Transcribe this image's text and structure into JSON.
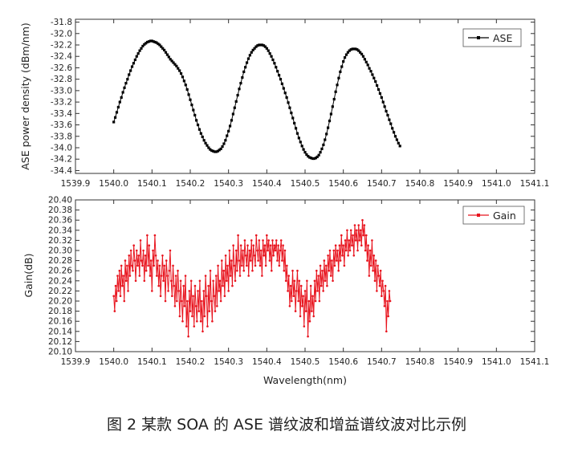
{
  "caption": "图 2  某款 SOA 的 ASE 谱纹波和增益谱纹波对比示例",
  "chart_data": [
    {
      "type": "line",
      "title": "",
      "xlabel": "",
      "ylabel": "ASE power density (dBm/nm)",
      "xlim": [
        1539.9,
        1541.1
      ],
      "ylim": [
        -34.45,
        -31.75
      ],
      "x_ticks": [
        "1539.9",
        "1540.0",
        "1540.1",
        "1540.2",
        "1540.3",
        "1540.4",
        "1540.5",
        "1540.6",
        "1540.7",
        "1540.8",
        "1540.9",
        "1541.0",
        "1541.1"
      ],
      "y_ticks": [
        "-31.8",
        "-32.0",
        "-32.2",
        "-32.4",
        "-32.6",
        "-32.8",
        "-33.0",
        "-33.2",
        "-33.4",
        "-33.6",
        "-33.8",
        "-34.0",
        "-34.2",
        "-34.4"
      ],
      "legend_position": "top-right",
      "series_color": "#000000",
      "marker": "square",
      "series": [
        {
          "name": "ASE",
          "x_start": 1540.0,
          "x_step": 0.004,
          "values": [
            -33.55,
            -33.47,
            -33.38,
            -33.29,
            -33.2,
            -33.12,
            -33.03,
            -32.95,
            -32.87,
            -32.8,
            -32.72,
            -32.65,
            -32.58,
            -32.52,
            -32.46,
            -32.4,
            -32.35,
            -32.3,
            -32.26,
            -32.22,
            -32.19,
            -32.17,
            -32.15,
            -32.14,
            -32.13,
            -32.13,
            -32.14,
            -32.15,
            -32.16,
            -32.18,
            -32.2,
            -32.23,
            -32.26,
            -32.29,
            -32.33,
            -32.37,
            -32.41,
            -32.45,
            -32.48,
            -32.51,
            -32.54,
            -32.57,
            -32.61,
            -32.65,
            -32.7,
            -32.76,
            -32.83,
            -32.9,
            -32.98,
            -33.07,
            -33.16,
            -33.25,
            -33.34,
            -33.43,
            -33.52,
            -33.6,
            -33.68,
            -33.75,
            -33.81,
            -33.87,
            -33.92,
            -33.96,
            -34.0,
            -34.03,
            -34.05,
            -34.06,
            -34.07,
            -34.07,
            -34.06,
            -34.04,
            -34.02,
            -33.98,
            -33.93,
            -33.87,
            -33.79,
            -33.71,
            -33.62,
            -33.52,
            -33.41,
            -33.3,
            -33.19,
            -33.08,
            -32.97,
            -32.87,
            -32.77,
            -32.67,
            -32.59,
            -32.51,
            -32.44,
            -32.38,
            -32.33,
            -32.29,
            -32.26,
            -32.23,
            -32.21,
            -32.2,
            -32.2,
            -32.2,
            -32.21,
            -32.23,
            -32.26,
            -32.3,
            -32.35,
            -32.4,
            -32.46,
            -32.52,
            -32.59,
            -32.66,
            -32.73,
            -32.8,
            -32.88,
            -32.96,
            -33.04,
            -33.12,
            -33.21,
            -33.3,
            -33.39,
            -33.48,
            -33.57,
            -33.66,
            -33.75,
            -33.83,
            -33.9,
            -33.97,
            -34.03,
            -34.08,
            -34.12,
            -34.15,
            -34.17,
            -34.18,
            -34.19,
            -34.19,
            -34.18,
            -34.16,
            -34.13,
            -34.08,
            -34.02,
            -33.95,
            -33.86,
            -33.76,
            -33.65,
            -33.53,
            -33.41,
            -33.28,
            -33.15,
            -33.02,
            -32.9,
            -32.78,
            -32.67,
            -32.58,
            -32.49,
            -32.42,
            -32.37,
            -32.33,
            -32.3,
            -32.28,
            -32.27,
            -32.27,
            -32.27,
            -32.28,
            -32.3,
            -32.33,
            -32.36,
            -32.4,
            -32.45,
            -32.5,
            -32.55,
            -32.61,
            -32.66,
            -32.72,
            -32.78,
            -32.84,
            -32.91,
            -32.98,
            -33.05,
            -33.12,
            -33.2,
            -33.28,
            -33.36,
            -33.43,
            -33.51,
            -33.58,
            -33.66,
            -33.73,
            -33.8,
            -33.86,
            -33.92,
            -33.97
          ]
        }
      ]
    },
    {
      "type": "line",
      "title": "",
      "xlabel": "Wavelength(nm)",
      "ylabel": "Gain(dB)",
      "xlim": [
        1539.9,
        1541.1
      ],
      "ylim": [
        20.1,
        20.4
      ],
      "x_ticks": [
        "1539.9",
        "1540.0",
        "1540.1",
        "1540.2",
        "1540.3",
        "1540.4",
        "1540.5",
        "1540.6",
        "1540.7",
        "1540.8",
        "1540.9",
        "1541.0",
        "1541.1"
      ],
      "y_ticks": [
        "20.40",
        "20.38",
        "20.36",
        "20.34",
        "20.32",
        "20.30",
        "20.28",
        "20.26",
        "20.24",
        "20.22",
        "20.20",
        "20.18",
        "20.16",
        "20.14",
        "20.12",
        "20.10"
      ],
      "legend_position": "top-right",
      "series_color": "#e8141e",
      "marker": "dot",
      "series": [
        {
          "name": "Gain",
          "x_start": 1540.0,
          "x_step": 0.0025,
          "values": [
            20.21,
            20.18,
            20.23,
            20.2,
            20.25,
            20.22,
            20.26,
            20.21,
            20.27,
            20.23,
            20.25,
            20.2,
            20.28,
            20.24,
            20.27,
            20.22,
            20.29,
            20.25,
            20.3,
            20.27,
            20.26,
            20.31,
            20.28,
            20.24,
            20.3,
            20.27,
            20.29,
            20.25,
            20.32,
            20.28,
            20.27,
            20.3,
            20.24,
            20.29,
            20.26,
            20.33,
            20.27,
            20.31,
            20.25,
            20.28,
            20.22,
            20.3,
            20.27,
            20.33,
            20.29,
            20.25,
            20.28,
            20.23,
            20.27,
            20.21,
            20.25,
            20.29,
            20.24,
            20.27,
            20.2,
            20.28,
            20.25,
            20.22,
            20.26,
            20.3,
            20.24,
            20.21,
            20.27,
            20.23,
            20.19,
            20.25,
            20.2,
            20.26,
            20.22,
            20.17,
            20.24,
            20.2,
            20.16,
            20.23,
            20.19,
            20.25,
            20.15,
            20.2,
            20.13,
            20.22,
            20.18,
            20.24,
            20.17,
            20.21,
            20.15,
            20.23,
            20.19,
            20.16,
            20.22,
            20.18,
            20.24,
            20.16,
            20.2,
            20.14,
            20.22,
            20.17,
            20.25,
            20.21,
            20.15,
            20.23,
            20.18,
            20.26,
            20.2,
            20.16,
            20.24,
            20.21,
            20.18,
            20.25,
            20.19,
            20.27,
            20.22,
            20.24,
            20.2,
            20.28,
            20.23,
            20.26,
            20.21,
            20.29,
            20.24,
            20.27,
            20.22,
            20.3,
            20.25,
            20.28,
            20.23,
            20.31,
            20.27,
            20.24,
            20.3,
            20.26,
            20.33,
            20.28,
            20.25,
            20.31,
            20.27,
            20.3,
            20.26,
            20.32,
            20.29,
            20.27,
            20.31,
            20.25,
            20.3,
            20.28,
            20.32,
            20.26,
            20.31,
            20.29,
            20.27,
            20.33,
            20.3,
            20.28,
            20.32,
            20.27,
            20.3,
            20.25,
            20.32,
            20.29,
            20.31,
            20.27,
            20.33,
            20.3,
            20.32,
            20.28,
            20.31,
            20.26,
            20.32,
            20.29,
            20.31,
            20.3,
            20.32,
            20.28,
            20.31,
            20.27,
            20.3,
            20.32,
            20.28,
            20.31,
            20.26,
            20.3,
            20.24,
            20.27,
            20.22,
            20.25,
            20.19,
            20.23,
            20.2,
            20.26,
            20.21,
            20.24,
            20.18,
            20.22,
            20.26,
            20.2,
            20.24,
            20.17,
            20.23,
            20.19,
            20.21,
            20.15,
            20.22,
            20.18,
            20.24,
            20.13,
            20.2,
            20.16,
            20.23,
            20.18,
            20.21,
            20.17,
            20.24,
            20.2,
            20.26,
            20.22,
            20.25,
            20.2,
            20.27,
            20.23,
            20.26,
            20.22,
            20.28,
            20.24,
            20.27,
            20.23,
            20.29,
            20.26,
            20.3,
            20.25,
            20.28,
            20.24,
            20.3,
            20.27,
            20.31,
            20.28,
            20.3,
            20.26,
            20.31,
            20.28,
            20.33,
            20.29,
            20.31,
            20.27,
            20.32,
            20.3,
            20.34,
            20.29,
            20.32,
            20.3,
            20.34,
            20.31,
            20.33,
            20.29,
            20.35,
            20.32,
            20.34,
            20.3,
            20.35,
            20.32,
            20.34,
            20.31,
            20.36,
            20.33,
            20.35,
            20.3,
            20.33,
            20.28,
            20.31,
            20.25,
            20.3,
            20.27,
            20.32,
            20.26,
            20.29,
            20.24,
            20.28,
            20.22,
            20.27,
            20.25,
            20.23,
            20.26,
            20.21,
            20.24,
            20.22,
            20.19,
            20.23,
            20.14,
            20.2,
            20.17,
            20.22,
            20.2
          ]
        }
      ]
    }
  ]
}
